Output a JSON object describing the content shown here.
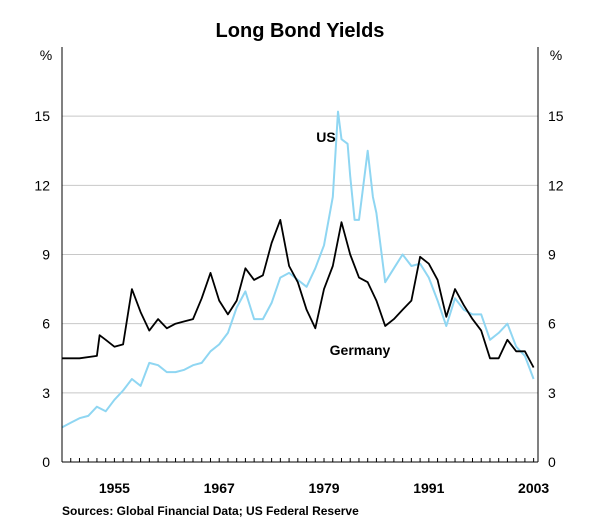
{
  "source_note": "Sources: Global Financial Data; US Federal Reserve",
  "chart_data": {
    "type": "line",
    "title": "Long Bond Yields",
    "ylabel_left": "%",
    "ylabel_right": "%",
    "xlim": [
      1949,
      2003.5
    ],
    "ylim": [
      0,
      18
    ],
    "yticks": [
      0,
      3,
      6,
      9,
      12,
      15
    ],
    "xticks": [
      1955,
      1967,
      1979,
      1991,
      2003
    ],
    "grid": true,
    "series": [
      {
        "name": "US",
        "color": "#8fd6f2",
        "x": [
          1949,
          1950,
          1951,
          1952,
          1953,
          1954,
          1955,
          1956,
          1957,
          1958,
          1959,
          1960,
          1961,
          1962,
          1963,
          1964,
          1965,
          1966,
          1967,
          1968,
          1969,
          1970,
          1971,
          1972,
          1973,
          1974,
          1975,
          1976,
          1977,
          1978,
          1979,
          1980,
          1980.6,
          1981,
          1981.7,
          1982,
          1982.5,
          1983,
          1984,
          1984.6,
          1985,
          1986,
          1987,
          1988,
          1989,
          1990,
          1991,
          1992,
          1993,
          1994,
          1995,
          1996,
          1997,
          1998,
          1999,
          2000,
          2001,
          2002,
          2003
        ],
        "values": [
          1.5,
          1.7,
          1.9,
          2.0,
          2.4,
          2.2,
          2.7,
          3.1,
          3.6,
          3.3,
          4.3,
          4.2,
          3.9,
          3.9,
          4.0,
          4.2,
          4.3,
          4.8,
          5.1,
          5.6,
          6.7,
          7.4,
          6.2,
          6.2,
          6.9,
          8.0,
          8.2,
          7.9,
          7.6,
          8.4,
          9.4,
          11.5,
          15.2,
          14.0,
          13.8,
          12.4,
          10.5,
          10.5,
          13.5,
          11.5,
          10.8,
          7.8,
          8.4,
          9.0,
          8.5,
          8.6,
          8.0,
          7.0,
          5.9,
          7.1,
          6.6,
          6.4,
          6.4,
          5.3,
          5.6,
          6.0,
          5.0,
          4.6,
          3.6
        ]
      },
      {
        "name": "Germany",
        "color": "#000000",
        "x": [
          1949,
          1951,
          1953,
          1953.3,
          1954,
          1955,
          1956,
          1957,
          1958,
          1959,
          1960,
          1961,
          1962,
          1963,
          1964,
          1965,
          1966,
          1967,
          1968,
          1969,
          1970,
          1971,
          1972,
          1973,
          1974,
          1975,
          1976,
          1977,
          1978,
          1979,
          1980,
          1981,
          1982,
          1983,
          1984,
          1985,
          1986,
          1987,
          1988,
          1989,
          1990,
          1991,
          1992,
          1993,
          1994,
          1995,
          1996,
          1997,
          1998,
          1999,
          2000,
          2001,
          2002,
          2003
        ],
        "values": [
          4.5,
          4.5,
          4.6,
          5.5,
          5.3,
          5.0,
          5.1,
          7.5,
          6.5,
          5.7,
          6.2,
          5.8,
          6.0,
          6.1,
          6.2,
          7.1,
          8.2,
          7.0,
          6.4,
          7.0,
          8.4,
          7.9,
          8.1,
          9.5,
          10.5,
          8.5,
          7.8,
          6.6,
          5.8,
          7.5,
          8.5,
          10.4,
          9.0,
          8.0,
          7.8,
          7.0,
          5.9,
          6.2,
          6.6,
          7.0,
          8.9,
          8.6,
          7.9,
          6.3,
          7.5,
          6.8,
          6.2,
          5.7,
          4.5,
          4.5,
          5.3,
          4.8,
          4.8,
          4.1
        ]
      }
    ]
  }
}
